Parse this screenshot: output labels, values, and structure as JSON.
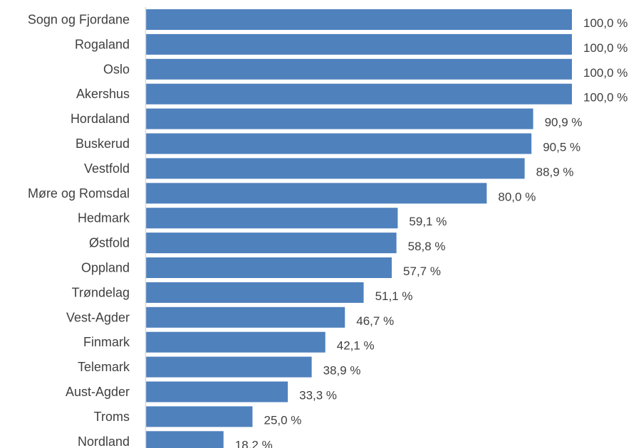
{
  "chart_data": {
    "type": "bar",
    "orientation": "horizontal",
    "categories": [
      "Sogn og Fjordane",
      "Rogaland",
      "Oslo",
      "Akershus",
      "Hordaland",
      "Buskerud",
      "Vestfold",
      "Møre og Romsdal",
      "Hedmark",
      "Østfold",
      "Oppland",
      "Trøndelag",
      "Vest-Agder",
      "Finmark",
      "Telemark",
      "Aust-Agder",
      "Troms",
      "Nordland"
    ],
    "values": [
      100.0,
      100.0,
      100.0,
      100.0,
      90.9,
      90.5,
      88.9,
      80.0,
      59.1,
      58.8,
      57.7,
      51.1,
      46.7,
      42.1,
      38.9,
      33.3,
      25.0,
      18.2
    ],
    "value_labels": [
      "100,0 %",
      "100,0 %",
      "100,0 %",
      "100,0 %",
      "90,9 %",
      "90,5 %",
      "88,9 %",
      "80,0 %",
      "59,1 %",
      "58,8 %",
      "57,7 %",
      "51,1 %",
      "46,7 %",
      "42,1 %",
      "38,9 %",
      "33,3 %",
      "25,0 %",
      "18,2 %"
    ],
    "xlim": [
      0,
      100
    ],
    "bar_color": "#4F81BD",
    "axis_color": "#D9D9D9",
    "text_color": "#404040",
    "grid": false,
    "legend": "none"
  }
}
